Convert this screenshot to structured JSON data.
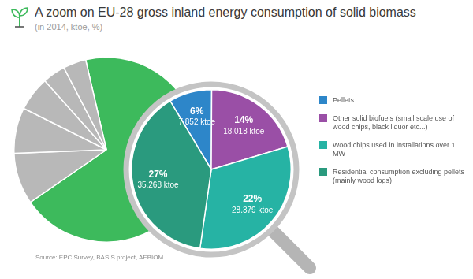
{
  "chart_data": [
    {
      "type": "pie",
      "categories": [
        null,
        null,
        null,
        null,
        null,
        null
      ],
      "values": [
        69,
        9,
        8,
        6,
        4,
        4
      ],
      "colors": [
        "#3dba5c",
        "#b8b8b8",
        "#b8b8b8",
        "#b8b8b8",
        "#b8b8b8",
        "#b8b8b8"
      ],
      "data_labels": false
    },
    {
      "type": "pie",
      "title": "A zoom on EU-28 gross inland energy consumption of solid biomass",
      "subtitle": "(in 2014, ktoe, %)",
      "annotations": [
        "Source: EPC Survey, BASIS project, AEBIOM"
      ],
      "categories": [
        "Pellets",
        "Other solid biofuels (small scale use of wood chips, black liquor etc...)",
        "Wood chips used in installations over 1 MW",
        "Residential consumption excluding pellets (mainly wood logs)"
      ],
      "values": [
        6,
        14,
        22,
        27
      ],
      "value_labels": [
        "6%",
        "14%",
        "22%",
        "27%"
      ],
      "ktoe": [
        7852,
        18018,
        28379,
        35268
      ],
      "ktoe_labels": [
        "7.852 ktoe",
        "18.018 ktoe",
        "28.379 ktoe",
        "35.268 ktoe"
      ],
      "colors": [
        "#2d86c9",
        "#9a4fa6",
        "#26b3a4",
        "#2a9a7e"
      ],
      "data_labels": true,
      "legend": "right"
    }
  ]
}
